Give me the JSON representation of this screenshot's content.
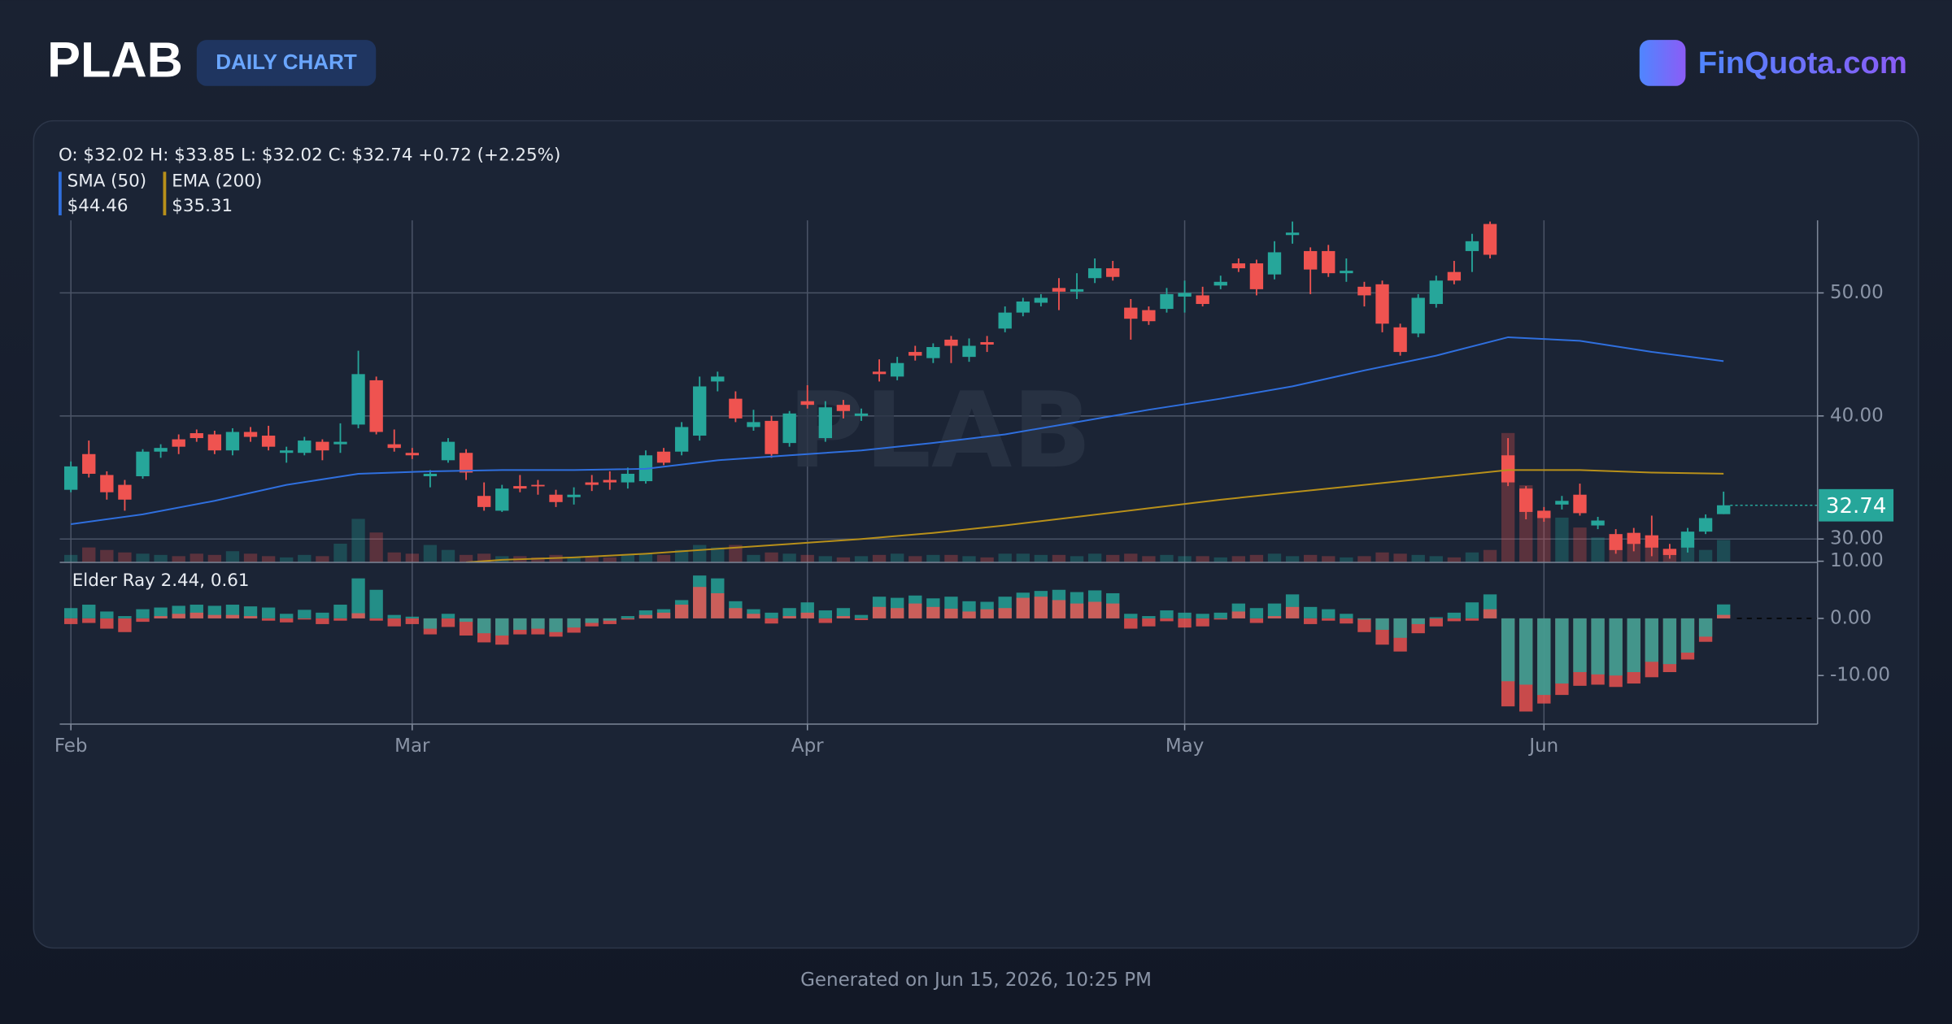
{
  "header": {
    "ticker": "PLAB",
    "badge": "DAILY CHART",
    "brand": "FinQuota.com"
  },
  "footer": "Generated on Jun 15, 2026, 10:25 PM",
  "chart_data": [
    {
      "type": "candlestick",
      "watermark": "PLAB",
      "ohlc_text": "O: $32.02 H: $33.85 L: $32.02 C: $32.74 +0.72 (+2.25%)",
      "up_color": "#26a69a",
      "down_color": "#ef5350",
      "open": [
        34.0,
        36.9,
        35.2,
        34.4,
        35.1,
        37.1,
        38.1,
        38.6,
        38.5,
        37.2,
        38.7,
        38.4,
        37.0,
        37.0,
        37.9,
        37.7,
        39.3,
        42.9,
        37.7,
        37.0,
        35.1,
        36.4,
        37.0,
        33.5,
        32.3,
        34.3,
        34.4,
        33.6,
        33.4,
        34.6,
        34.8,
        34.6,
        34.7,
        37.1,
        37.1,
        38.4,
        42.8,
        41.4,
        39.1,
        39.6,
        37.8,
        41.2,
        38.2,
        40.9,
        40.0,
        43.6,
        43.2,
        45.2,
        44.7,
        46.2,
        44.8,
        46.0,
        47.1,
        48.4,
        49.2,
        50.4,
        50.1,
        51.2,
        52.0,
        48.8,
        48.6,
        48.7,
        49.7,
        49.8,
        50.6,
        52.4,
        52.4,
        51.5,
        54.7,
        53.4,
        53.4,
        51.6,
        50.5,
        50.7,
        47.2,
        46.7,
        49.1,
        51.7,
        53.4,
        55.6,
        36.8,
        34.1,
        32.3,
        32.8,
        33.6,
        31.1,
        30.4,
        30.5,
        30.3,
        29.2,
        29.3,
        30.6,
        32.02
      ],
      "high": [
        36.3,
        38.0,
        35.5,
        34.8,
        37.3,
        37.7,
        38.5,
        38.9,
        38.8,
        39.0,
        39.1,
        39.2,
        37.5,
        38.3,
        38.1,
        39.4,
        45.3,
        43.2,
        38.9,
        37.4,
        35.6,
        38.2,
        37.3,
        34.6,
        34.4,
        35.2,
        34.8,
        34.0,
        34.2,
        35.2,
        35.5,
        35.8,
        37.2,
        37.4,
        39.5,
        43.2,
        43.6,
        42.0,
        40.5,
        40.0,
        40.4,
        42.5,
        41.2,
        41.3,
        40.6,
        44.6,
        44.8,
        45.7,
        45.9,
        46.5,
        46.3,
        46.5,
        48.9,
        49.6,
        49.9,
        51.2,
        51.6,
        52.8,
        52.6,
        49.5,
        48.9,
        50.4,
        51.0,
        50.5,
        51.4,
        52.8,
        52.7,
        54.2,
        55.8,
        53.7,
        53.9,
        52.8,
        50.9,
        51.0,
        47.5,
        49.9,
        51.4,
        52.6,
        54.8,
        55.8,
        38.2,
        34.3,
        32.6,
        33.5,
        34.5,
        31.8,
        30.8,
        30.9,
        31.9,
        29.6,
        30.9,
        32.0,
        33.85
      ],
      "low": [
        33.8,
        35.0,
        33.2,
        32.3,
        34.9,
        36.6,
        36.9,
        37.9,
        36.9,
        36.8,
        37.9,
        37.2,
        36.2,
        36.8,
        36.4,
        37.0,
        39.0,
        38.5,
        37.1,
        36.5,
        34.2,
        36.2,
        34.8,
        32.3,
        32.2,
        33.8,
        33.6,
        32.6,
        32.8,
        33.9,
        34.0,
        34.1,
        34.5,
        36.0,
        36.8,
        38.0,
        42.0,
        39.5,
        38.8,
        36.6,
        37.5,
        40.6,
        37.9,
        39.8,
        39.6,
        42.8,
        42.9,
        44.5,
        44.3,
        44.3,
        44.4,
        45.2,
        46.8,
        48.1,
        48.9,
        48.6,
        49.5,
        50.8,
        51.0,
        46.2,
        47.4,
        48.4,
        48.4,
        48.9,
        50.3,
        51.7,
        49.8,
        51.1,
        54.0,
        49.9,
        51.3,
        50.9,
        48.9,
        46.8,
        44.9,
        46.4,
        48.8,
        50.7,
        51.7,
        52.8,
        34.3,
        31.6,
        31.4,
        32.4,
        31.9,
        30.8,
        28.8,
        29.0,
        28.6,
        28.4,
        28.9,
        30.4,
        32.02
      ],
      "close": [
        35.9,
        35.3,
        33.8,
        33.2,
        37.1,
        37.4,
        37.5,
        38.2,
        37.2,
        38.7,
        38.3,
        37.5,
        37.2,
        38.0,
        37.2,
        37.9,
        43.4,
        38.7,
        37.4,
        36.8,
        35.3,
        37.9,
        35.4,
        32.6,
        34.1,
        34.1,
        34.3,
        33.0,
        33.6,
        34.4,
        34.6,
        35.3,
        36.8,
        36.2,
        39.1,
        42.4,
        43.2,
        39.8,
        39.5,
        36.9,
        40.2,
        40.9,
        40.7,
        40.4,
        40.2,
        43.4,
        44.3,
        44.9,
        45.6,
        45.7,
        45.7,
        45.8,
        48.4,
        49.3,
        49.6,
        50.1,
        50.3,
        52.0,
        51.3,
        47.9,
        47.7,
        49.9,
        50.0,
        49.1,
        50.9,
        52.0,
        50.3,
        53.3,
        54.9,
        51.9,
        51.6,
        51.8,
        49.8,
        47.5,
        45.2,
        49.6,
        51.0,
        51.0,
        54.2,
        53.1,
        34.6,
        32.2,
        31.7,
        33.1,
        32.1,
        31.5,
        29.1,
        29.6,
        29.3,
        28.7,
        30.6,
        31.7,
        32.74
      ],
      "volume": [
        120000,
        240000,
        200000,
        160000,
        140000,
        120000,
        100000,
        140000,
        120000,
        180000,
        140000,
        100000,
        80000,
        120000,
        100000,
        300000,
        700000,
        480000,
        160000,
        140000,
        280000,
        200000,
        120000,
        140000,
        100000,
        100000,
        80000,
        120000,
        80000,
        100000,
        80000,
        120000,
        140000,
        120000,
        200000,
        280000,
        240000,
        280000,
        120000,
        160000,
        140000,
        120000,
        100000,
        80000,
        100000,
        120000,
        140000,
        100000,
        120000,
        120000,
        100000,
        80000,
        140000,
        140000,
        120000,
        120000,
        100000,
        140000,
        120000,
        140000,
        100000,
        120000,
        100000,
        100000,
        80000,
        100000,
        120000,
        140000,
        100000,
        120000,
        100000,
        80000,
        100000,
        160000,
        140000,
        120000,
        100000,
        80000,
        160000,
        200000,
        2080000,
        1240000,
        800000,
        720000,
        560000,
        400000,
        360000,
        320000,
        280000,
        200000,
        240000,
        200000,
        360000
      ],
      "series": [
        {
          "name": "SMA (50)",
          "legend_value": "$44.46",
          "color": "#2f6fde",
          "x": [
            0,
            4,
            8,
            12,
            16,
            20,
            24,
            28,
            32,
            36,
            40,
            44,
            48,
            52,
            56,
            60,
            64,
            68,
            72,
            76,
            80,
            84,
            88,
            92
          ],
          "values": [
            31.2,
            32.0,
            33.1,
            34.4,
            35.3,
            35.5,
            35.6,
            35.6,
            35.7,
            36.4,
            36.8,
            37.2,
            37.8,
            38.5,
            39.5,
            40.5,
            41.4,
            42.4,
            43.7,
            44.9,
            46.4,
            46.1,
            45.2,
            44.46
          ]
        },
        {
          "name": "EMA (200)",
          "legend_value": "$35.31",
          "color": "#b8901a",
          "x": [
            22,
            24,
            28,
            32,
            36,
            40,
            44,
            48,
            52,
            56,
            60,
            64,
            68,
            72,
            76,
            80,
            84,
            88,
            92
          ],
          "values": [
            28.1,
            28.3,
            28.5,
            28.8,
            29.2,
            29.6,
            30.0,
            30.5,
            31.1,
            31.8,
            32.5,
            33.2,
            33.8,
            34.4,
            35.0,
            35.6,
            35.6,
            35.4,
            35.31
          ]
        }
      ],
      "last_price_label": "32.74",
      "xlim": [
        -0.62,
        97.23
      ],
      "xticks": [
        {
          "value": 0,
          "label": "Feb"
        },
        {
          "value": 19,
          "label": "Mar"
        },
        {
          "value": 41,
          "label": "Apr"
        },
        {
          "value": 62,
          "label": "May"
        },
        {
          "value": 82,
          "label": "Jun"
        }
      ],
      "ylim": [
        28.1,
        55.9
      ],
      "yticks": [
        {
          "value": 30,
          "label": "30.00"
        },
        {
          "value": 40,
          "label": "40.00"
        },
        {
          "value": 50,
          "label": "50.00"
        }
      ],
      "grid": true
    },
    {
      "type": "elder_ray",
      "title": "Elder Ray 2.44, 0.61",
      "bull_power": {
        "color": "#26a69a",
        "values": [
          1.8,
          2.4,
          1.2,
          0.4,
          1.6,
          1.9,
          2.2,
          2.4,
          2.2,
          2.4,
          2.1,
          1.9,
          0.8,
          1.5,
          1.0,
          2.4,
          7.0,
          5.0,
          0.6,
          0.3,
          -1.8,
          0.8,
          -0.6,
          -2.6,
          -3.0,
          -2.0,
          -1.8,
          -2.4,
          -1.6,
          -0.8,
          -0.4,
          0.4,
          1.4,
          1.6,
          3.2,
          7.5,
          7.0,
          3.0,
          1.6,
          1.0,
          1.8,
          2.8,
          1.4,
          1.8,
          0.6,
          3.8,
          3.6,
          4.0,
          3.5,
          3.8,
          3.0,
          2.9,
          3.8,
          4.5,
          4.8,
          5.0,
          4.6,
          4.9,
          4.4,
          0.8,
          0.4,
          1.4,
          1.0,
          0.8,
          1.0,
          2.6,
          1.8,
          2.6,
          4.2,
          2.0,
          1.6,
          0.8,
          -0.2,
          -2.0,
          -3.4,
          -1.0,
          0.2,
          1.0,
          2.8,
          4.2,
          -11.0,
          -11.6,
          -13.4,
          -11.4,
          -9.4,
          -9.8,
          -10.0,
          -9.4,
          -7.6,
          -8.0,
          -6.0,
          -3.2,
          2.44
        ]
      },
      "bear_power": {
        "color": "#ef5350",
        "values": [
          -1.0,
          -0.8,
          -1.8,
          -2.4,
          -0.6,
          0.4,
          0.8,
          1.0,
          0.6,
          0.6,
          0.4,
          -0.4,
          -0.7,
          -0.2,
          -1.0,
          -0.4,
          0.9,
          -0.4,
          -1.4,
          -1.0,
          -2.8,
          -1.5,
          -3.0,
          -4.2,
          -4.6,
          -2.8,
          -2.8,
          -3.2,
          -2.5,
          -1.4,
          -1.0,
          -0.2,
          0.6,
          1.0,
          2.4,
          5.5,
          4.4,
          1.8,
          0.8,
          -0.9,
          0.4,
          1.0,
          -0.8,
          0.4,
          -0.3,
          2.0,
          1.8,
          2.6,
          2.0,
          1.7,
          1.2,
          1.6,
          1.8,
          3.6,
          3.8,
          3.2,
          2.6,
          2.9,
          2.6,
          -1.8,
          -1.4,
          -0.5,
          -1.6,
          -1.4,
          -0.2,
          1.2,
          -0.8,
          0.4,
          2.0,
          -1.0,
          -0.4,
          -0.9,
          -2.4,
          -4.6,
          -5.8,
          -2.6,
          -1.4,
          -0.5,
          -0.4,
          1.6,
          -15.4,
          -16.3,
          -14.9,
          -13.4,
          -11.8,
          -11.6,
          -12.0,
          -11.4,
          -10.3,
          -9.4,
          -7.2,
          -4.1,
          0.61
        ]
      },
      "ylim": [
        -18.5,
        9.8
      ],
      "yticks": [
        {
          "value": -10,
          "label": "-10.00"
        },
        {
          "value": 0,
          "label": "0.00"
        },
        {
          "value": 10,
          "label": "10.00"
        }
      ],
      "grid": false
    }
  ]
}
